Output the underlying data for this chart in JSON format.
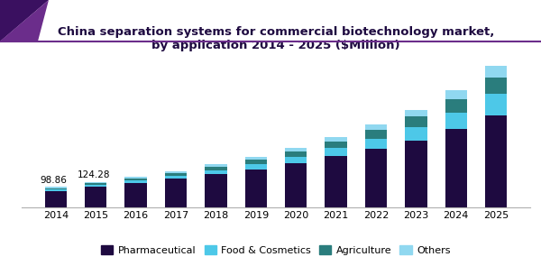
{
  "title": "China separation systems for commercial biotechnology market,\nby application 2014 - 2025 ($Million)",
  "years": [
    2014,
    2015,
    2016,
    2017,
    2018,
    2019,
    2020,
    2021,
    2022,
    2023,
    2024,
    2025
  ],
  "pharmaceutical": [
    78.0,
    100.0,
    118.0,
    138.0,
    162.0,
    185.0,
    215.0,
    248.0,
    285.0,
    325.0,
    380.0,
    445.0
  ],
  "food_cosmetics": [
    8.0,
    10.5,
    12.5,
    15.5,
    19.0,
    24.0,
    30.0,
    38.0,
    48.0,
    62.0,
    80.0,
    105.0
  ],
  "agriculture": [
    6.5,
    8.3,
    10.5,
    13.0,
    16.5,
    21.0,
    26.0,
    33.0,
    42.0,
    52.0,
    65.0,
    80.0
  ],
  "others": [
    6.36,
    5.48,
    6.5,
    8.0,
    10.5,
    13.5,
    17.0,
    21.0,
    26.5,
    33.0,
    41.0,
    55.0
  ],
  "labels_2014": "98.86",
  "labels_2015": "124.28",
  "colors": {
    "pharmaceutical": "#1e0a40",
    "food_cosmetics": "#4dc8e8",
    "agriculture": "#2a7d7d",
    "others": "#90d8f0"
  },
  "legend_labels": [
    "Pharmaceutical",
    "Food & Cosmetics",
    "Agriculture",
    "Others"
  ],
  "background_color": "#ffffff",
  "title_fontsize": 9.5,
  "tick_fontsize": 8,
  "legend_fontsize": 8,
  "ylim": [
    0,
    720
  ],
  "bar_width": 0.55,
  "title_color": "#1e0a40",
  "decor_colors": [
    "#6b2d8b",
    "#3a1060",
    "#4a2080"
  ],
  "header_line_color": "#6b2d8b"
}
